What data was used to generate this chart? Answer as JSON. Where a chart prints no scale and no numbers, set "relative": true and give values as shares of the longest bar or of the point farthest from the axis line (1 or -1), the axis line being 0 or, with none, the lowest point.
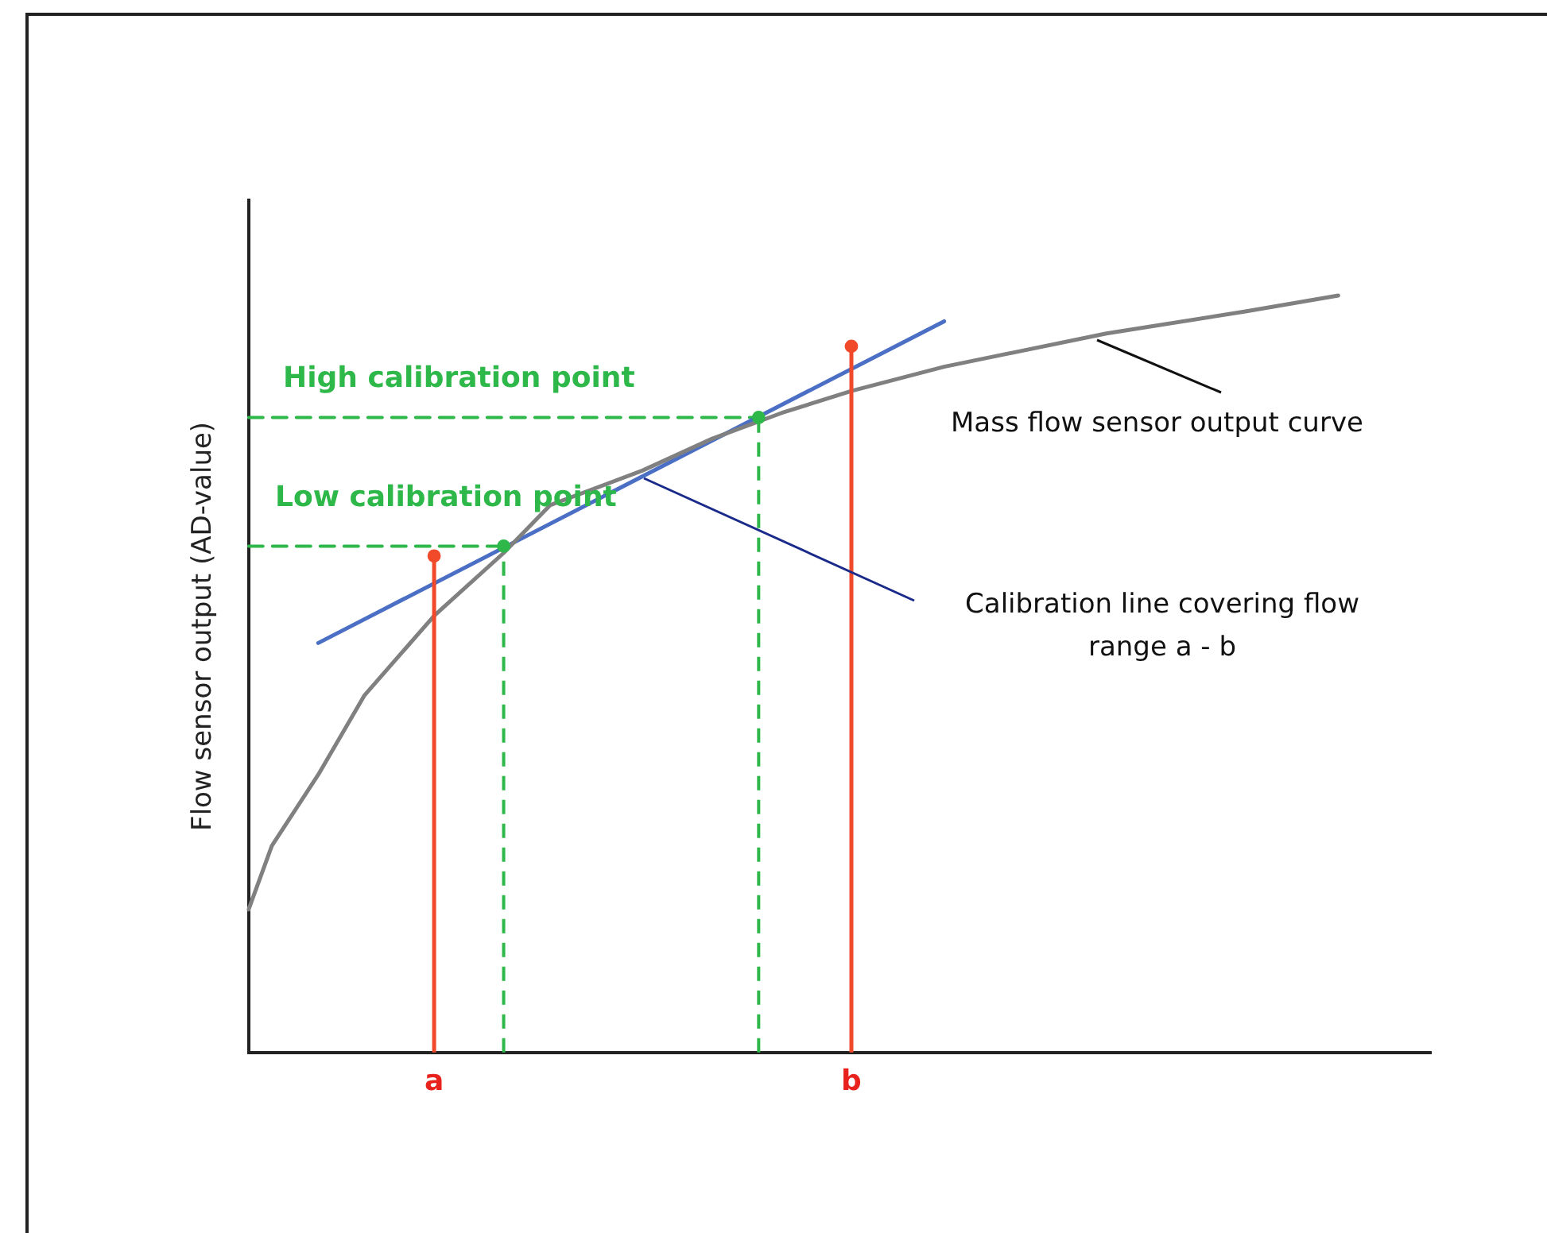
{
  "chart_data": {
    "type": "line",
    "relative": true,
    "ylabel": "Flow sensor output (AD-value)",
    "legend": false,
    "marker": "none",
    "categories": [
      null,
      null,
      null,
      null,
      null,
      null,
      null,
      null,
      "a",
      null,
      null,
      null,
      null,
      null,
      null,
      null,
      null,
      null,
      null,
      null,
      null,
      null,
      null,
      null,
      null,
      null,
      "b",
      null,
      null,
      null,
      null,
      null,
      null,
      null,
      null,
      null,
      null,
      null,
      null,
      null,
      null,
      null,
      null,
      null,
      null,
      null,
      null,
      null,
      null,
      null,
      null,
      null
    ],
    "series": [
      {
        "color": "#808080",
        "line_style": "solid",
        "values": [
          0.189,
          0.273,
          null,
          0.367,
          null,
          0.472,
          null,
          null,
          0.577,
          null,
          null,
          0.66,
          null,
          0.723,
          null,
          null,
          null,
          0.769,
          null,
          null,
          0.811,
          null,
          null,
          0.845,
          null,
          null,
          0.874,
          null,
          null,
          null,
          0.906,
          null,
          null,
          null,
          null,
          null,
          null,
          0.95,
          null,
          null,
          null,
          null,
          null,
          0.979,
          null,
          null,
          null,
          1,
          null,
          null,
          null,
          null
        ]
      },
      {
        "color": "#4a6fc4",
        "line_style": "solid",
        "values": [
          null,
          null,
          null,
          0.541,
          null,
          null,
          null,
          null,
          null,
          null,
          null,
          null,
          null,
          null,
          null,
          null,
          null,
          null,
          null,
          null,
          null,
          null,
          null,
          null,
          null,
          null,
          null,
          null,
          null,
          null,
          0.966,
          null,
          null,
          null,
          null,
          null,
          null,
          null,
          null,
          null,
          null,
          null,
          null,
          null,
          null,
          null,
          null,
          null,
          null,
          null,
          null,
          null
        ]
      },
      {
        "color": "#2eb84a",
        "line_style": "dashed",
        "values": [
          0.669,
          null,
          null,
          null,
          null,
          null,
          null,
          null,
          null,
          null,
          null,
          0.669,
          null,
          null,
          null,
          null,
          null,
          null,
          null,
          null,
          null,
          null,
          null,
          null,
          null,
          null,
          null,
          null,
          null,
          null,
          null,
          null,
          null,
          null,
          null,
          null,
          null,
          null,
          null,
          null,
          null,
          null,
          null,
          null,
          null,
          null,
          null,
          null,
          null,
          null,
          null,
          null
        ]
      },
      {
        "color": "#2eb84a",
        "line_style": "dashed",
        "values": [
          0.839,
          null,
          null,
          null,
          null,
          null,
          null,
          null,
          null,
          null,
          null,
          null,
          null,
          null,
          null,
          null,
          null,
          null,
          null,
          null,
          null,
          null,
          0.839,
          null,
          null,
          null,
          null,
          null,
          null,
          null,
          null,
          null,
          null,
          null,
          null,
          null,
          null,
          null,
          null,
          null,
          null,
          null,
          null,
          null,
          null,
          null,
          null,
          null,
          null,
          null,
          null,
          null
        ]
      },
      {
        "type": "lollipop",
        "marker": "circle",
        "color": "#2eb84a",
        "line_style": "dashed",
        "values": [
          null,
          null,
          null,
          null,
          null,
          null,
          null,
          null,
          null,
          null,
          null,
          0.669,
          null,
          null,
          null,
          null,
          null,
          null,
          null,
          null,
          null,
          null,
          0.839,
          null,
          null,
          null,
          null,
          null,
          null,
          null,
          null,
          null,
          null,
          null,
          null,
          null,
          null,
          null,
          null,
          null,
          null,
          null,
          null,
          null,
          null,
          null,
          null,
          null,
          null,
          null,
          null,
          null
        ]
      },
      {
        "type": "lollipop",
        "marker": "circle",
        "color": "#f04a2a",
        "line_style": "solid",
        "values": [
          null,
          null,
          null,
          null,
          null,
          null,
          null,
          null,
          0.656,
          null,
          null,
          null,
          null,
          null,
          null,
          null,
          null,
          null,
          null,
          null,
          null,
          null,
          null,
          null,
          null,
          null,
          0.933,
          null,
          null,
          null,
          null,
          null,
          null,
          null,
          null,
          null,
          null,
          null,
          null,
          null,
          null,
          null,
          null,
          null,
          null,
          null,
          null,
          null,
          null,
          null,
          null,
          null
        ]
      }
    ],
    "annotations": [
      "High calibration point",
      "Low calibration point",
      "Mass flow sensor output curve",
      "Calibration line covering flow range a - b"
    ]
  }
}
